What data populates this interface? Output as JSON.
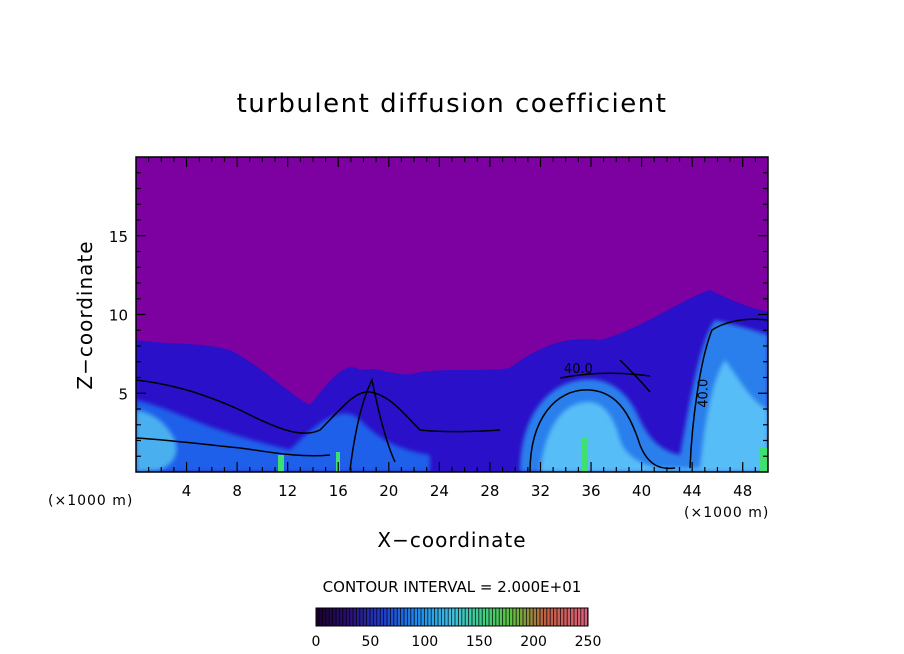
{
  "chart_data": {
    "type": "heatmap",
    "title": "turbulent diffusion coefficient",
    "xlabel": "X−coordinate",
    "ylabel": "Z−coordinate",
    "x_unit_left": "(×1000 m)",
    "x_unit_right": "(×1000 m)",
    "xlim": [
      0,
      50
    ],
    "ylim": [
      0,
      20
    ],
    "xticks": [
      4,
      8,
      12,
      16,
      20,
      24,
      28,
      32,
      36,
      40,
      44,
      48
    ],
    "yticks": [
      5,
      10,
      15
    ],
    "contour_interval_text": "CONTOUR INTERVAL = 2.000E+01",
    "contour_labels": [
      {
        "text": "40.0",
        "x": 35.0,
        "z": 6.3
      },
      {
        "text": "40.0",
        "x": 45.2,
        "z": 5.0
      }
    ],
    "field_regions": [
      {
        "desc": "turbulent layer",
        "x_range": [
          0,
          50
        ],
        "z_top_left": 8.2,
        "z_top_right": 10.2,
        "value_range": [
          20,
          120
        ]
      },
      {
        "desc": "upper atmosphere",
        "z_range": [
          10,
          20
        ],
        "value": 0
      }
    ],
    "colorbar": {
      "min": 0,
      "max": 250,
      "ticks": [
        0,
        50,
        100,
        150,
        200,
        250
      ]
    },
    "colors": {
      "background_field": "#7d00a0",
      "low": "#3a1ac8",
      "mid": "#1f8cf0",
      "high": "#6fe0ff",
      "green": "#3fe06a",
      "frame": "#000000"
    }
  }
}
